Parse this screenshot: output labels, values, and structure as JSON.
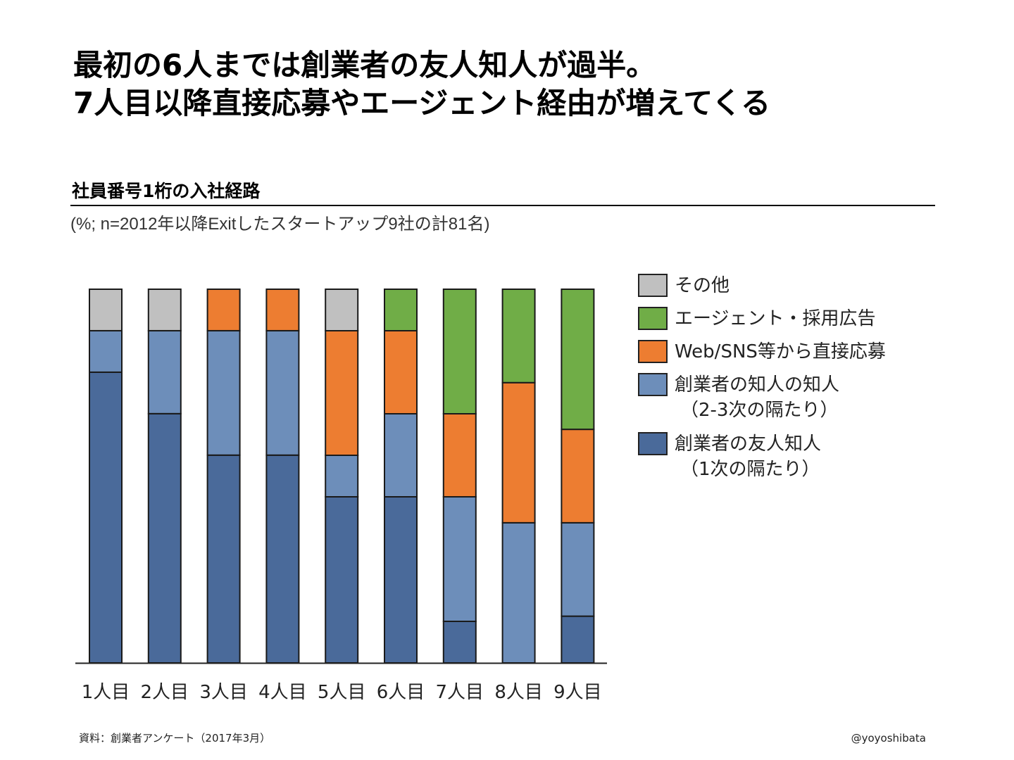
{
  "title": {
    "line1": "最初の6人までは創業者の友人知人が過半。",
    "line2": "7人目以降直接応募やエージェント経由が増えてくる"
  },
  "subtitle": "社員番号1桁の入社経路",
  "note": "(%; n=2012年以降Exitしたスタートアップ9社の計81名)",
  "legend": [
    {
      "key": "other",
      "label": "その他",
      "label2": null,
      "color": "#c0c0c0"
    },
    {
      "key": "agent",
      "label": "エージェント・採用広告",
      "label2": null,
      "color": "#70ad47"
    },
    {
      "key": "direct",
      "label": "Web/SNS等から直接応募",
      "label2": null,
      "color": "#ed7d31"
    },
    {
      "key": "acq2",
      "label": "創業者の知人の知人",
      "label2": "（2-3次の隔たり）",
      "color": "#6d8eba"
    },
    {
      "key": "friend",
      "label": "創業者の友人知人",
      "label2": "（1次の隔たり）",
      "color": "#4a6a9a"
    }
  ],
  "chart_data": {
    "type": "bar",
    "stacked": true,
    "title": "社員番号1桁の入社経路",
    "xlabel": "",
    "ylabel": "%",
    "ylim": [
      0,
      100
    ],
    "grid": false,
    "legend_position": "right",
    "categories": [
      "1人目",
      "2人目",
      "3人目",
      "4人目",
      "5人目",
      "6人目",
      "7人目",
      "8人目",
      "9人目"
    ],
    "series": [
      {
        "name": "創業者の友人知人（1次の隔たり）",
        "key": "friend",
        "values": [
          77.8,
          66.7,
          55.6,
          55.6,
          44.4,
          44.4,
          11.1,
          0,
          12.5
        ]
      },
      {
        "name": "創業者の知人の知人（2-3次の隔たり）",
        "key": "acq2",
        "values": [
          11.1,
          22.2,
          33.3,
          33.3,
          11.1,
          22.2,
          33.3,
          37.5,
          25.0
        ]
      },
      {
        "name": "Web/SNS等から直接応募",
        "key": "direct",
        "values": [
          0,
          0,
          11.1,
          11.1,
          33.3,
          22.2,
          22.2,
          37.5,
          25.0
        ]
      },
      {
        "name": "エージェント・採用広告",
        "key": "agent",
        "values": [
          0,
          0,
          0,
          0,
          0,
          11.1,
          33.3,
          25.0,
          37.5
        ]
      },
      {
        "name": "その他",
        "key": "other",
        "values": [
          11.1,
          11.1,
          0,
          0,
          11.1,
          0,
          0,
          0,
          0
        ]
      }
    ]
  },
  "footer": {
    "source": "資料：創業者アンケート（2017年3月）",
    "credit": "@yoyoshibata"
  }
}
